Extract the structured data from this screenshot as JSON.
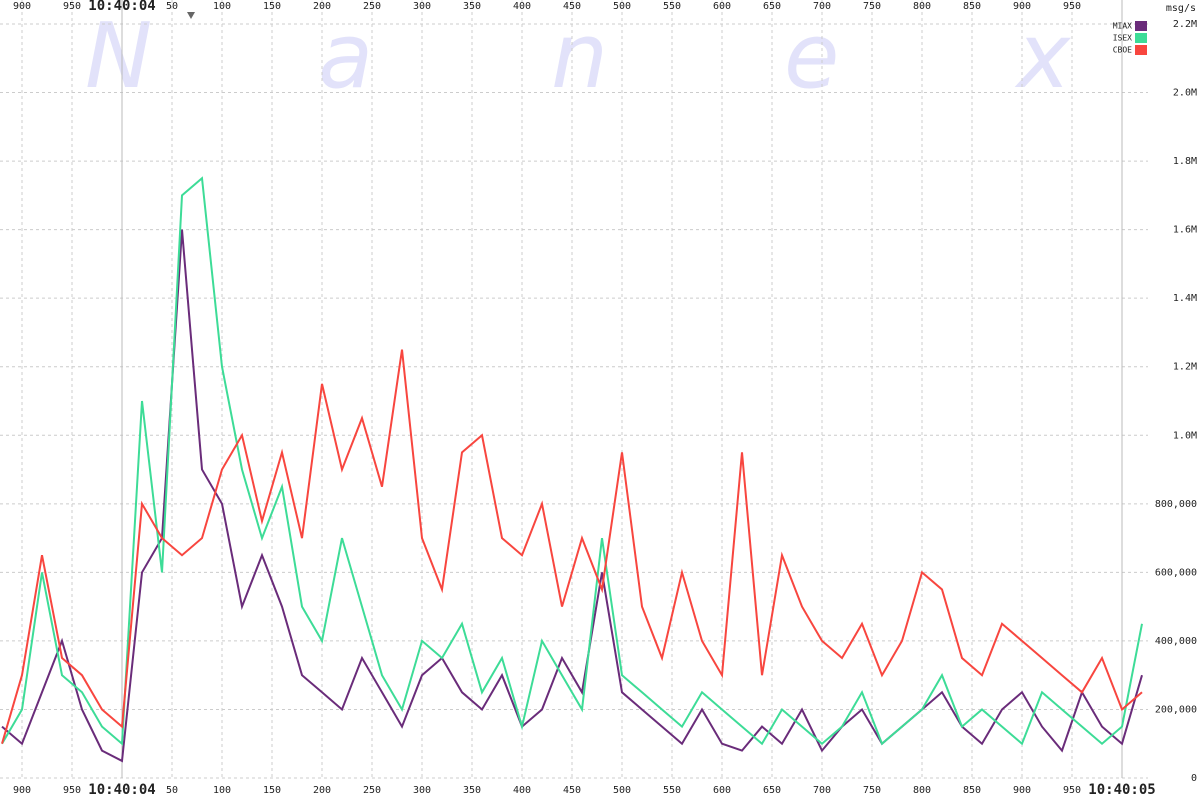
{
  "chart_data": {
    "type": "line",
    "watermark": [
      "N",
      "a",
      "n",
      "e",
      "x"
    ],
    "y_label": "msg/s",
    "x": [
      -120,
      -100,
      -80,
      -60,
      -40,
      -20,
      0,
      20,
      40,
      60,
      80,
      100,
      120,
      140,
      160,
      180,
      200,
      220,
      240,
      260,
      280,
      300,
      320,
      340,
      360,
      380,
      400,
      420,
      440,
      460,
      480,
      500,
      520,
      540,
      560,
      580,
      600,
      620,
      640,
      660,
      680,
      700,
      720,
      740,
      760,
      780,
      800,
      820,
      840,
      860,
      880,
      900,
      920,
      940,
      960,
      980,
      1000,
      1020
    ],
    "series": [
      {
        "name": "MIAX",
        "color": "#6a2c7a",
        "values": [
          150000,
          100000,
          250000,
          400000,
          200000,
          80000,
          50000,
          600000,
          700000,
          1600000,
          900000,
          800000,
          500000,
          650000,
          500000,
          300000,
          250000,
          200000,
          350000,
          250000,
          150000,
          300000,
          350000,
          250000,
          200000,
          300000,
          150000,
          200000,
          350000,
          250000,
          600000,
          250000,
          200000,
          150000,
          100000,
          200000,
          100000,
          80000,
          150000,
          100000,
          200000,
          80000,
          150000,
          200000,
          100000,
          150000,
          200000,
          250000,
          150000,
          100000,
          200000,
          250000,
          150000,
          80000,
          250000,
          150000,
          100000,
          300000
        ]
      },
      {
        "name": "ISEX",
        "color": "#3ddc97",
        "values": [
          100000,
          200000,
          600000,
          300000,
          250000,
          150000,
          100000,
          1100000,
          600000,
          1700000,
          1750000,
          1200000,
          900000,
          700000,
          850000,
          500000,
          400000,
          700000,
          500000,
          300000,
          200000,
          400000,
          350000,
          450000,
          250000,
          350000,
          150000,
          400000,
          300000,
          200000,
          700000,
          300000,
          250000,
          200000,
          150000,
          250000,
          200000,
          150000,
          100000,
          200000,
          150000,
          100000,
          150000,
          250000,
          100000,
          150000,
          200000,
          300000,
          150000,
          200000,
          150000,
          100000,
          250000,
          200000,
          150000,
          100000,
          150000,
          450000
        ]
      },
      {
        "name": "CBOE",
        "color": "#f8463f",
        "values": [
          100000,
          300000,
          650000,
          350000,
          300000,
          200000,
          150000,
          800000,
          700000,
          650000,
          700000,
          900000,
          1000000,
          750000,
          950000,
          700000,
          1150000,
          900000,
          1050000,
          850000,
          1250000,
          700000,
          550000,
          950000,
          1000000,
          700000,
          650000,
          800000,
          500000,
          700000,
          550000,
          950000,
          500000,
          350000,
          600000,
          400000,
          300000,
          950000,
          300000,
          650000,
          500000,
          400000,
          350000,
          450000,
          300000,
          400000,
          600000,
          550000,
          350000,
          300000,
          450000,
          400000,
          350000,
          300000,
          250000,
          350000,
          200000,
          250000
        ]
      }
    ],
    "xlim": [
      -122,
      1026
    ],
    "xticks": [
      {
        "value": -100,
        "label": "900"
      },
      {
        "value": -50,
        "label": "950"
      },
      {
        "value": 0,
        "label": "10:40:04"
      },
      50,
      100,
      150,
      200,
      250,
      300,
      350,
      400,
      450,
      500,
      550,
      600,
      650,
      700,
      750,
      800,
      850,
      900,
      950,
      {
        "value": 1000,
        "label": "10:40:05"
      }
    ],
    "ylim": [
      0,
      2200000
    ],
    "yticks": [
      0,
      {
        "value": 200000,
        "label": "200,000"
      },
      {
        "value": 400000,
        "label": "400,000"
      },
      {
        "value": 600000,
        "label": "600,000"
      },
      {
        "value": 800000,
        "label": "800,000"
      },
      {
        "value": 1000000,
        "label": "1.0M"
      },
      {
        "value": 1200000,
        "label": "1.2M"
      },
      {
        "value": 1400000,
        "label": "1.4M"
      },
      {
        "value": 1600000,
        "label": "1.6M"
      },
      {
        "value": 1800000,
        "label": "1.8M"
      },
      {
        "value": 2000000,
        "label": "2.0M"
      },
      {
        "value": 2200000,
        "label": "2.2M"
      }
    ],
    "grid": true,
    "legend": "top-right"
  }
}
